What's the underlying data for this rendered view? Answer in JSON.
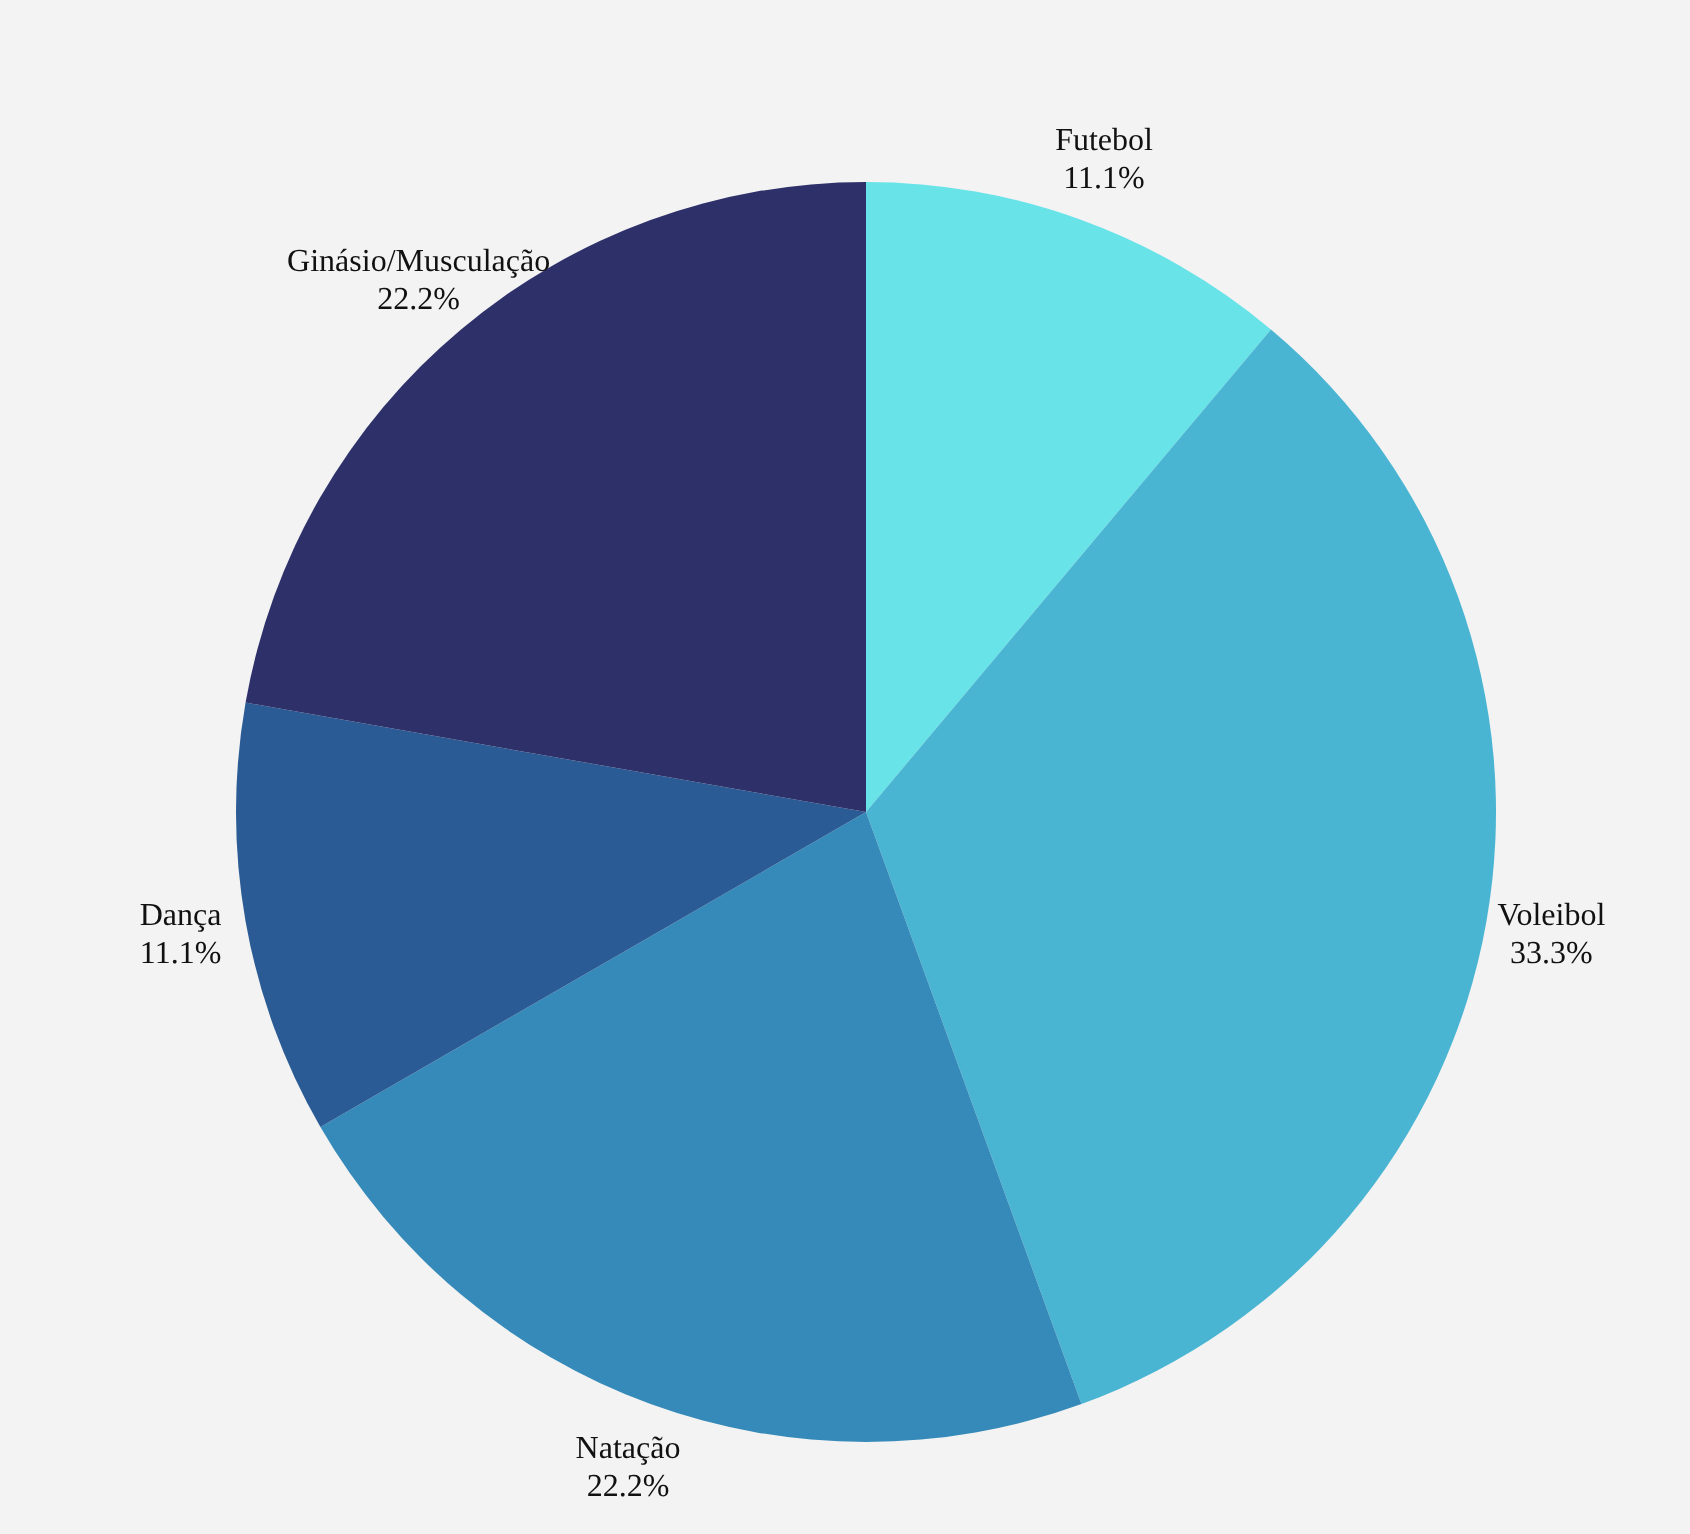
{
  "chart_data": {
    "type": "pie",
    "categories": [
      "Futebol",
      "Voleibol",
      "Natação",
      "Dança",
      "Ginásio/Musculação"
    ],
    "values": [
      11.1,
      33.3,
      22.2,
      11.1,
      22.2
    ],
    "value_labels": [
      "11.1%",
      "33.3%",
      "22.2%",
      "11.1%",
      "22.2%"
    ],
    "colors": [
      "#68e3e8",
      "#4ab5d3",
      "#358ab9",
      "#2a5b94",
      "#2d3069"
    ]
  }
}
